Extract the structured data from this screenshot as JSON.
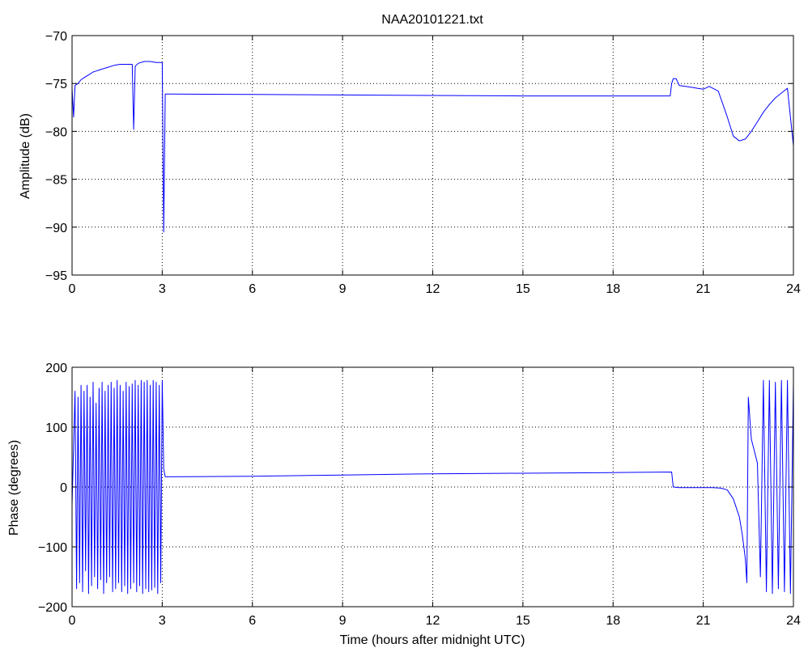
{
  "figure": {
    "title": "NAA20101221.txt",
    "line_color": "#0000ff"
  },
  "chart_data": [
    {
      "type": "line",
      "title": "NAA20101221.txt",
      "xlabel": "",
      "ylabel": "Amplitude (dB)",
      "xlim": [
        0,
        24
      ],
      "ylim": [
        -95,
        -70
      ],
      "xticks": [
        0,
        3,
        6,
        9,
        12,
        15,
        18,
        21,
        24
      ],
      "yticks": [
        -95,
        -90,
        -85,
        -80,
        -75,
        -70
      ],
      "grid": true,
      "series": [
        {
          "color": "#0000ff",
          "x": [
            0,
            0.05,
            0.1,
            0.2,
            0.3,
            0.4,
            0.5,
            0.6,
            0.7,
            0.8,
            0.9,
            1.0,
            1.2,
            1.4,
            1.6,
            1.8,
            2.0,
            2.05,
            2.1,
            2.2,
            2.4,
            2.6,
            2.8,
            3.0,
            3.05,
            3.1,
            3.15,
            3.2,
            6,
            9,
            12,
            15,
            18,
            19.9,
            19.95,
            20.0,
            20.1,
            20.2,
            20.4,
            20.6,
            20.8,
            21.0,
            21.2,
            21.5,
            21.8,
            22.0,
            22.2,
            22.4,
            22.6,
            22.8,
            23.0,
            23.2,
            23.4,
            23.6,
            23.8,
            24.0
          ],
          "y": [
            -75.5,
            -78.5,
            -75.2,
            -75.0,
            -74.6,
            -74.4,
            -74.2,
            -74.0,
            -73.8,
            -73.7,
            -73.6,
            -73.5,
            -73.3,
            -73.1,
            -73.0,
            -73.0,
            -73.0,
            -79.8,
            -73.2,
            -72.9,
            -72.7,
            -72.7,
            -72.8,
            -72.8,
            -90.5,
            -76.1,
            -76.1,
            -76.1,
            -76.15,
            -76.2,
            -76.25,
            -76.3,
            -76.3,
            -76.3,
            -75.0,
            -74.5,
            -74.5,
            -75.2,
            -75.3,
            -75.4,
            -75.5,
            -75.6,
            -75.3,
            -75.8,
            -78.5,
            -80.5,
            -81.0,
            -80.8,
            -80.0,
            -79.0,
            -78.0,
            -77.2,
            -76.5,
            -76.0,
            -75.5,
            -81.5
          ]
        }
      ]
    },
    {
      "type": "line",
      "title": "",
      "xlabel": "Time (hours after midnight UTC)",
      "ylabel": "Phase (degrees)",
      "xlim": [
        0,
        24
      ],
      "ylim": [
        -200,
        200
      ],
      "xticks": [
        0,
        3,
        6,
        9,
        12,
        15,
        18,
        21,
        24
      ],
      "yticks": [
        -200,
        -100,
        0,
        100,
        200
      ],
      "grid": true,
      "series": [
        {
          "color": "#0000ff",
          "x": [
            0.0,
            0.1,
            0.15,
            0.2,
            0.25,
            0.3,
            0.35,
            0.4,
            0.45,
            0.5,
            0.55,
            0.6,
            0.65,
            0.7,
            0.75,
            0.8,
            0.85,
            0.9,
            0.95,
            1.0,
            1.05,
            1.1,
            1.15,
            1.2,
            1.25,
            1.3,
            1.35,
            1.4,
            1.45,
            1.5,
            1.55,
            1.6,
            1.65,
            1.7,
            1.75,
            1.8,
            1.85,
            1.9,
            1.95,
            2.0,
            2.05,
            2.1,
            2.15,
            2.2,
            2.25,
            2.3,
            2.35,
            2.4,
            2.45,
            2.5,
            2.55,
            2.6,
            2.65,
            2.7,
            2.75,
            2.8,
            2.85,
            2.9,
            2.95,
            3.0,
            3.05,
            3.1,
            3.2,
            6,
            9,
            12,
            15,
            18,
            19.95,
            20.0,
            20.2,
            20.5,
            21.0,
            21.3,
            21.6,
            21.8,
            22.0,
            22.2,
            22.3,
            22.4,
            22.45,
            22.5,
            22.6,
            22.8,
            22.9,
            23.0,
            23.1,
            23.2,
            23.3,
            23.4,
            23.5,
            23.6,
            23.7,
            23.8,
            23.9,
            24.0
          ],
          "y": [
            -30,
            160,
            -170,
            150,
            -160,
            170,
            -175,
            160,
            -140,
            170,
            -178,
            150,
            -165,
            175,
            -150,
            140,
            -170,
            165,
            -155,
            175,
            -178,
            160,
            -160,
            170,
            -150,
            175,
            -175,
            165,
            -170,
            178,
            -160,
            170,
            -175,
            160,
            -165,
            175,
            -178,
            168,
            -170,
            172,
            -160,
            178,
            -175,
            170,
            -165,
            178,
            -178,
            175,
            -170,
            178,
            -175,
            170,
            -172,
            178,
            -168,
            175,
            -178,
            170,
            -160,
            178,
            30,
            17,
            17,
            18,
            20,
            22,
            23,
            24,
            25,
            0,
            -1,
            -1,
            -1,
            -1,
            -2,
            -5,
            -20,
            -50,
            -80,
            -120,
            -160,
            150,
            80,
            40,
            -150,
            178,
            -175,
            178,
            -178,
            175,
            -170,
            178,
            -175,
            178,
            -178,
            175
          ]
        }
      ]
    }
  ]
}
